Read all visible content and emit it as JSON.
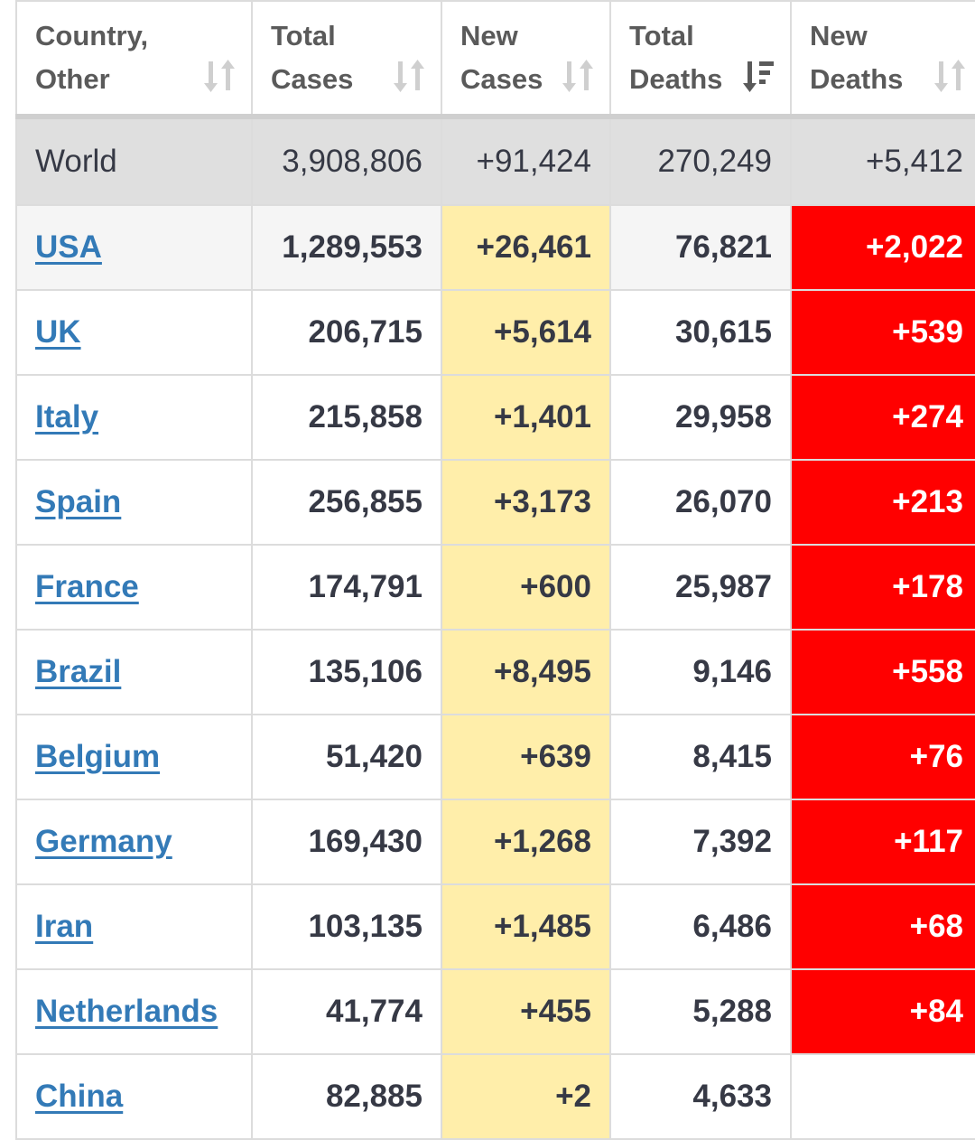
{
  "headers": [
    {
      "line1": "Country,",
      "line2": "Other",
      "sort_icon": "sort-both-icon"
    },
    {
      "line1": "Total",
      "line2": "Cases",
      "sort_icon": "sort-both-icon"
    },
    {
      "line1": "New",
      "line2": "Cases",
      "sort_icon": "sort-both-icon"
    },
    {
      "line1": "Total",
      "line2": "Deaths",
      "sort_icon": "sort-descending-icon"
    },
    {
      "line1": "New",
      "line2": "Deaths",
      "sort_icon": "sort-both-icon"
    }
  ],
  "world": {
    "country": "World",
    "total_cases": "3,908,806",
    "new_cases": "+91,424",
    "total_deaths": "270,249",
    "new_deaths": "+5,412"
  },
  "rows": [
    {
      "country": "USA",
      "total_cases": "1,289,553",
      "new_cases": "+26,461",
      "total_deaths": "76,821",
      "new_deaths": "+2,022"
    },
    {
      "country": "UK",
      "total_cases": "206,715",
      "new_cases": "+5,614",
      "total_deaths": "30,615",
      "new_deaths": "+539"
    },
    {
      "country": "Italy",
      "total_cases": "215,858",
      "new_cases": "+1,401",
      "total_deaths": "29,958",
      "new_deaths": "+274"
    },
    {
      "country": "Spain",
      "total_cases": "256,855",
      "new_cases": "+3,173",
      "total_deaths": "26,070",
      "new_deaths": "+213"
    },
    {
      "country": "France",
      "total_cases": "174,791",
      "new_cases": "+600",
      "total_deaths": "25,987",
      "new_deaths": "+178"
    },
    {
      "country": "Brazil",
      "total_cases": "135,106",
      "new_cases": "+8,495",
      "total_deaths": "9,146",
      "new_deaths": "+558"
    },
    {
      "country": "Belgium",
      "total_cases": "51,420",
      "new_cases": "+639",
      "total_deaths": "8,415",
      "new_deaths": "+76"
    },
    {
      "country": "Germany",
      "total_cases": "169,430",
      "new_cases": "+1,268",
      "total_deaths": "7,392",
      "new_deaths": "+117"
    },
    {
      "country": "Iran",
      "total_cases": "103,135",
      "new_cases": "+1,485",
      "total_deaths": "6,486",
      "new_deaths": "+68"
    },
    {
      "country": "Netherlands",
      "total_cases": "41,774",
      "new_cases": "+455",
      "total_deaths": "5,288",
      "new_deaths": "+84"
    },
    {
      "country": "China",
      "total_cases": "82,885",
      "new_cases": "+2",
      "total_deaths": "4,633",
      "new_deaths": ""
    }
  ],
  "colors": {
    "link": "#337ab7",
    "new_cases_bg": "#ffeeaa",
    "new_deaths_bg": "#ff0000",
    "world_bg": "#dfdfdf",
    "text": "#363945"
  }
}
